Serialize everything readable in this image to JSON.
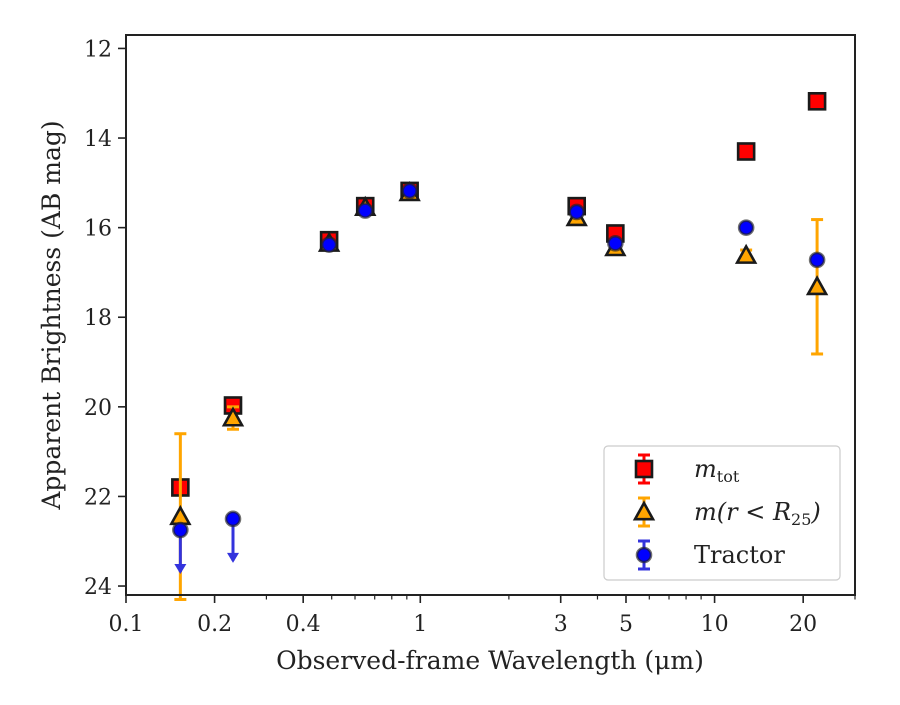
{
  "chart_data": {
    "type": "scatter",
    "xlabel": "Observed-frame Wavelength (μm)",
    "ylabel": "Apparent Brightness (AB mag)",
    "xscale": "log",
    "xlim": [
      0.1,
      30
    ],
    "ylim": [
      24.2,
      11.7
    ],
    "y_inverted": true,
    "grid": false,
    "legend_position": "lower-right",
    "x_ticks": [
      {
        "value": 0.1,
        "label": "0.1"
      },
      {
        "value": 0.2,
        "label": "0.2"
      },
      {
        "value": 0.4,
        "label": "0.4"
      },
      {
        "value": 1,
        "label": "1"
      },
      {
        "value": 3,
        "label": "3"
      },
      {
        "value": 5,
        "label": "5"
      },
      {
        "value": 10,
        "label": "10"
      },
      {
        "value": 20,
        "label": "20"
      }
    ],
    "y_ticks": [
      {
        "value": 12,
        "label": "12"
      },
      {
        "value": 14,
        "label": "14"
      },
      {
        "value": 16,
        "label": "16"
      },
      {
        "value": 18,
        "label": "18"
      },
      {
        "value": 20,
        "label": "20"
      },
      {
        "value": 22,
        "label": "22"
      },
      {
        "value": 24,
        "label": "24"
      }
    ],
    "series": [
      {
        "name": "m_tot",
        "label_main": "m",
        "label_sub": "tot",
        "marker": "square",
        "color": "#ff0000",
        "errorbar_color": "#ff0000",
        "points": [
          {
            "x": 0.153,
            "y": 21.8
          },
          {
            "x": 0.231,
            "y": 19.97
          },
          {
            "x": 0.49,
            "y": 16.28
          },
          {
            "x": 0.65,
            "y": 15.52
          },
          {
            "x": 0.92,
            "y": 15.18
          },
          {
            "x": 3.4,
            "y": 15.52
          },
          {
            "x": 4.6,
            "y": 16.13
          },
          {
            "x": 12.8,
            "y": 14.3
          },
          {
            "x": 22.3,
            "y": 13.18
          }
        ]
      },
      {
        "name": "m(r < R_25)",
        "label_main": "m(r < R",
        "label_sub": "25",
        "label_tail": ")",
        "marker": "triangle",
        "color": "#ffa500",
        "errorbar_color": "#ffa500",
        "points": [
          {
            "x": 0.153,
            "y": 22.45,
            "err_low": 1.85,
            "err_high": 1.85
          },
          {
            "x": 0.231,
            "y": 20.25,
            "err_low": 0.25,
            "err_high": 0.25
          },
          {
            "x": 0.49,
            "y": 16.35
          },
          {
            "x": 0.65,
            "y": 15.55
          },
          {
            "x": 0.92,
            "y": 15.22
          },
          {
            "x": 3.4,
            "y": 15.78
          },
          {
            "x": 4.6,
            "y": 16.45
          },
          {
            "x": 12.8,
            "y": 16.62,
            "err_low": 0.12,
            "err_high": 0.12
          },
          {
            "x": 22.3,
            "y": 17.32,
            "err_low": 1.5,
            "err_high": 1.5
          }
        ]
      },
      {
        "name": "Tractor",
        "label_main": "Tractor",
        "marker": "circle",
        "color": "#0000ff",
        "errorbar_color": "#3333dd",
        "points": [
          {
            "x": 0.153,
            "y": 22.75,
            "upper_limit": true
          },
          {
            "x": 0.231,
            "y": 22.5,
            "upper_limit": true
          },
          {
            "x": 0.49,
            "y": 16.38
          },
          {
            "x": 0.65,
            "y": 15.62
          },
          {
            "x": 0.92,
            "y": 15.18
          },
          {
            "x": 3.4,
            "y": 15.65
          },
          {
            "x": 4.6,
            "y": 16.35
          },
          {
            "x": 12.8,
            "y": 16.0
          },
          {
            "x": 22.3,
            "y": 16.72
          }
        ]
      }
    ]
  }
}
